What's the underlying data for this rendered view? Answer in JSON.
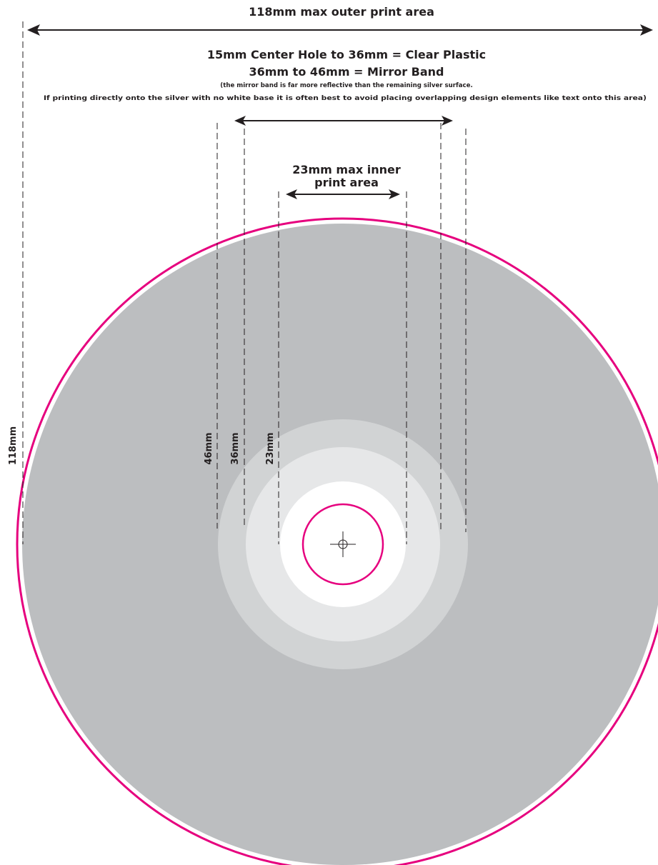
{
  "labels": {
    "outer_print_area": "118mm max outer print area",
    "clear_plastic": "15mm Center Hole to 36mm = Clear Plastic",
    "mirror_band": "36mm to 46mm = Mirror Band",
    "note_line1": "(the mirror band is far more reflective than the remaining silver surface.",
    "note_line2": "If printing directly onto the silver with no white base it is often best to avoid placing overlapping design elements like text onto this area)",
    "inner_print_area_line1": "23mm max inner",
    "inner_print_area_line2": "print area",
    "dim_118": "118mm",
    "dim_46": "46mm",
    "dim_36": "36mm",
    "dim_23": "23mm"
  },
  "colors": {
    "disc_surface": "#bcbec0",
    "mirror_band": "#d1d3d4",
    "clear_plastic": "#e6e7e8",
    "inner_print": "#ffffff",
    "cut_line": "#e6007e",
    "ink": "#231f20"
  }
}
